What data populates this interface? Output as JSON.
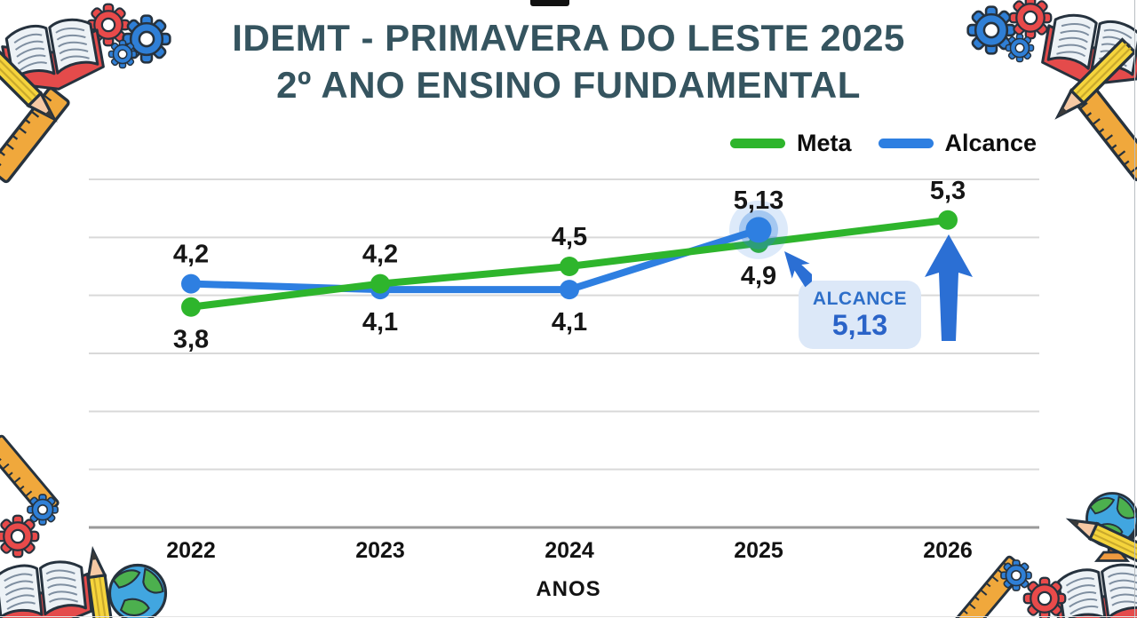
{
  "title": {
    "line1": "IDEMT - PRIMAVERA DO LESTE 2025",
    "line2": "2º ANO ENSINO FUNDAMENTAL"
  },
  "legend": [
    {
      "label": "Meta",
      "color": "#2eb52c"
    },
    {
      "label": "Alcance",
      "color": "#2e7fe1"
    }
  ],
  "chart_data": {
    "type": "line",
    "categories": [
      "2022",
      "2023",
      "2024",
      "2025",
      "2026"
    ],
    "xlabel": "ANOS",
    "ylabel": "",
    "ylim": [
      0,
      6.2
    ],
    "grid": {
      "horizontal": true,
      "step": 1
    },
    "legend_position": "top-right",
    "series": [
      {
        "name": "Meta",
        "color": "#2eb52c",
        "values": [
          3.8,
          4.2,
          4.5,
          4.9,
          5.3
        ],
        "labels": [
          "3,8",
          "4,2",
          "4,5",
          "4,9",
          "5,3"
        ],
        "label_positions": [
          "below",
          "above",
          "above",
          "below",
          "above"
        ]
      },
      {
        "name": "Alcance",
        "color": "#2e7fe1",
        "values": [
          4.2,
          4.1,
          4.1,
          5.13,
          null
        ],
        "labels": [
          "4,2",
          "4,1",
          "4,1",
          "5,13",
          ""
        ],
        "label_positions": [
          "above",
          "below",
          "below",
          "above",
          ""
        ]
      }
    ],
    "highlight": {
      "series": "Alcance",
      "category": "2025",
      "effect": "glow"
    }
  },
  "callout": {
    "title": "ALCANCE",
    "value": "5,13"
  },
  "colors": {
    "title": "#35545f",
    "grid": "#d9d9d9",
    "axis": "#9a9a9a",
    "point_label": "#161616",
    "callout_bg": "#dce8f8",
    "callout_text": "#2a63c8",
    "arrow": "#2b6fd4",
    "background": "#ffffff"
  },
  "decor": {
    "top_notch_color": "#111111",
    "corner_icons": [
      "open-book-icon",
      "red-gear-icon",
      "blue-gear-icon",
      "small-gear-icon",
      "pencil-icon",
      "ruler-icon",
      "globe-icon"
    ]
  }
}
